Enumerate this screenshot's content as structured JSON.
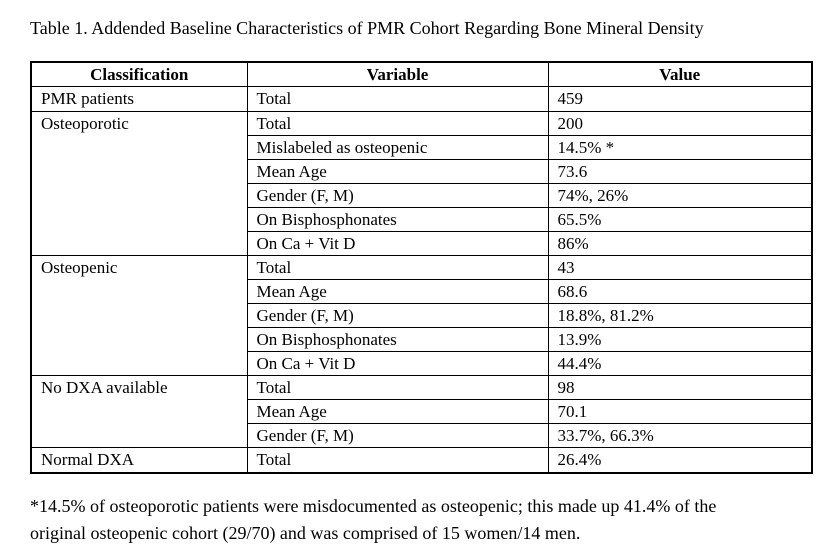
{
  "page": {
    "title": "Table 1. Addended Baseline Characteristics of PMR Cohort Regarding Bone Mineral Density"
  },
  "table": {
    "columns": [
      "Classification",
      "Variable",
      "Value"
    ],
    "groups": [
      {
        "classification": "PMR patients",
        "rows": [
          [
            "Total",
            "459"
          ]
        ]
      },
      {
        "classification": "Osteoporotic",
        "rows": [
          [
            "Total",
            "200"
          ],
          [
            "Mislabeled as osteopenic",
            "14.5% *"
          ],
          [
            "Mean Age",
            "73.6"
          ],
          [
            "Gender (F, M)",
            "74%, 26%"
          ],
          [
            "On Bisphosphonates",
            "65.5%"
          ],
          [
            "On Ca + Vit D",
            "86%"
          ]
        ]
      },
      {
        "classification": "Osteopenic",
        "rows": [
          [
            "Total",
            "43"
          ],
          [
            "Mean Age",
            "68.6"
          ],
          [
            "Gender (F, M)",
            "18.8%, 81.2%"
          ],
          [
            "On Bisphosphonates",
            "13.9%"
          ],
          [
            "On Ca + Vit D",
            "44.4%"
          ]
        ]
      },
      {
        "classification": "No DXA available",
        "rows": [
          [
            "Total",
            "98"
          ],
          [
            "Mean Age",
            "70.1"
          ],
          [
            "Gender (F, M)",
            "33.7%, 66.3%"
          ]
        ]
      },
      {
        "classification": "Normal DXA",
        "rows": [
          [
            "Total",
            "26.4%"
          ]
        ]
      }
    ]
  },
  "footnote": {
    "lines": [
      "*14.5% of osteoporotic patients were misdocumented as osteopenic; this made up 41.4% of the",
      "original osteopenic cohort (29/70) and was comprised of 15 women/14 men."
    ]
  }
}
